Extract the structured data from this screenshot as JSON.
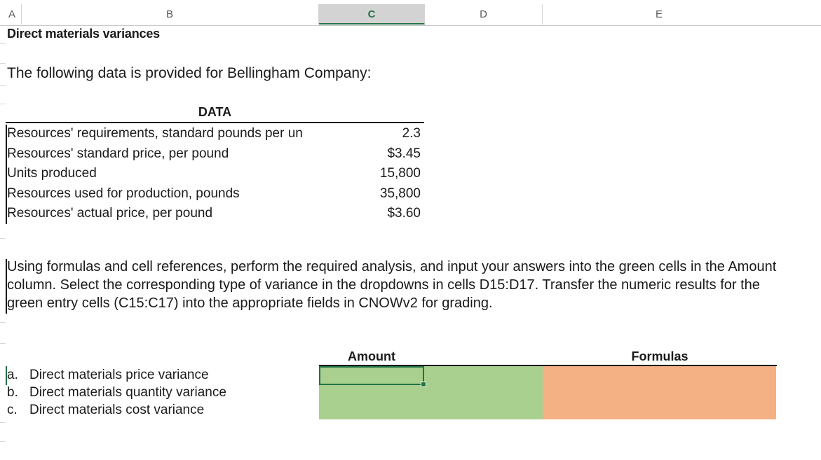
{
  "columns": [
    "A",
    "B",
    "C",
    "D",
    "E"
  ],
  "active_column": "C",
  "title": "Direct materials variances",
  "intro": "The following data is provided for Bellingham Company:",
  "data_header": "DATA",
  "data_rows": [
    {
      "label": "Resources' requirements, standard pounds per un",
      "value": "2.3"
    },
    {
      "label": "Resources' standard price, per pound",
      "value": "$3.45"
    },
    {
      "label": "Units produced",
      "value": "15,800"
    },
    {
      "label": "Resources used for production, pounds",
      "value": "35,800"
    },
    {
      "label": "Resources' actual price, per pound",
      "value": "$3.60"
    }
  ],
  "instructions": "Using formulas and cell references, perform the required analysis, and input your answers into the green cells in the Amount column. Select the corresponding type of variance in the dropdowns in cells D15:D17. Transfer the numeric results for the green entry cells (C15:C17) into the appropriate fields in CNOWv2 for grading.",
  "answer_table": {
    "amount_header": "Amount",
    "formulas_header": "Formulas",
    "questions": [
      {
        "letter": "a.",
        "text": "Direct materials price variance"
      },
      {
        "letter": "b.",
        "text": "Direct materials quantity variance"
      },
      {
        "letter": "c.",
        "text": "Direct materials cost variance"
      }
    ]
  },
  "colors": {
    "amount_fill": "#a9d08e",
    "formulas_fill": "#f4b183",
    "selection": "#217346"
  }
}
